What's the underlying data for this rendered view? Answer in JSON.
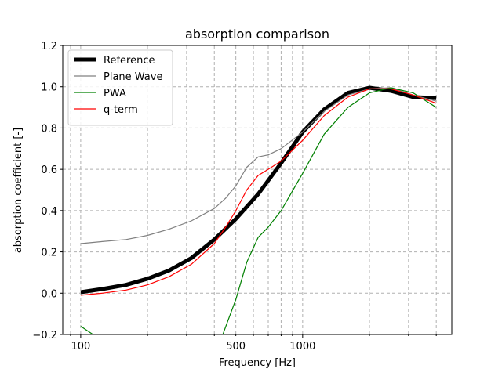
{
  "chart_data": {
    "type": "line",
    "title": "absorption comparison",
    "xlabel": "Frequency [Hz]",
    "ylabel": "absorption coefficient [-]",
    "xscale": "log",
    "xlim": [
      83,
      4700
    ],
    "ylim": [
      -0.2,
      1.2
    ],
    "xticks": [
      {
        "value": 100,
        "label": "100"
      },
      {
        "value": 500,
        "label": "500"
      },
      {
        "value": 1000,
        "label": "1000"
      }
    ],
    "yticks": [
      {
        "value": -0.2,
        "label": "−0.2"
      },
      {
        "value": 0.0,
        "label": "0.0"
      },
      {
        "value": 0.2,
        "label": "0.2"
      },
      {
        "value": 0.4,
        "label": "0.4"
      },
      {
        "value": 0.6,
        "label": "0.6"
      },
      {
        "value": 0.8,
        "label": "0.8"
      },
      {
        "value": 1.0,
        "label": "1.0"
      },
      {
        "value": 1.2,
        "label": "1.2"
      }
    ],
    "grid": true,
    "grid_style": "dashed",
    "legend_position": "top-left",
    "series": [
      {
        "name": "Reference",
        "color": "#000000",
        "linewidth": "thick",
        "x": [
          100,
          125,
          160,
          200,
          250,
          315,
          400,
          500,
          630,
          800,
          1000,
          1250,
          1600,
          2000,
          2500,
          3150,
          4000
        ],
        "y": [
          0.005,
          0.02,
          0.04,
          0.07,
          0.11,
          0.17,
          0.26,
          0.36,
          0.48,
          0.63,
          0.78,
          0.89,
          0.97,
          0.995,
          0.98,
          0.95,
          0.945
        ]
      },
      {
        "name": "Plane Wave",
        "color": "#808080",
        "linewidth": "thin",
        "x": [
          100,
          125,
          160,
          200,
          250,
          315,
          400,
          450,
          500,
          560,
          630,
          700,
          800,
          1000,
          1250,
          1600,
          2000,
          2500,
          3150,
          4000
        ],
        "y": [
          0.24,
          0.25,
          0.26,
          0.28,
          0.31,
          0.35,
          0.41,
          0.46,
          0.52,
          0.61,
          0.66,
          0.67,
          0.7,
          0.78,
          0.88,
          0.96,
          0.99,
          0.995,
          0.96,
          0.93
        ]
      },
      {
        "name": "PWA",
        "color": "#008000",
        "linewidth": "thin",
        "x": [
          100,
          125,
          430,
          500,
          560,
          630,
          700,
          800,
          1000,
          1250,
          1600,
          2000,
          2500,
          3150,
          4000
        ],
        "y": [
          -0.16,
          -0.23,
          -0.22,
          -0.03,
          0.15,
          0.27,
          0.32,
          0.4,
          0.58,
          0.77,
          0.9,
          0.97,
          0.995,
          0.97,
          0.9
        ]
      },
      {
        "name": "q-term",
        "color": "#ff0000",
        "linewidth": "thin",
        "x": [
          100,
          125,
          160,
          200,
          250,
          315,
          400,
          450,
          500,
          560,
          630,
          700,
          800,
          1000,
          1250,
          1600,
          2000,
          2500,
          3150,
          4000
        ],
        "y": [
          -0.01,
          0.0,
          0.015,
          0.04,
          0.08,
          0.14,
          0.24,
          0.32,
          0.4,
          0.5,
          0.57,
          0.6,
          0.64,
          0.74,
          0.86,
          0.95,
          0.99,
          0.99,
          0.96,
          0.92
        ]
      }
    ]
  }
}
